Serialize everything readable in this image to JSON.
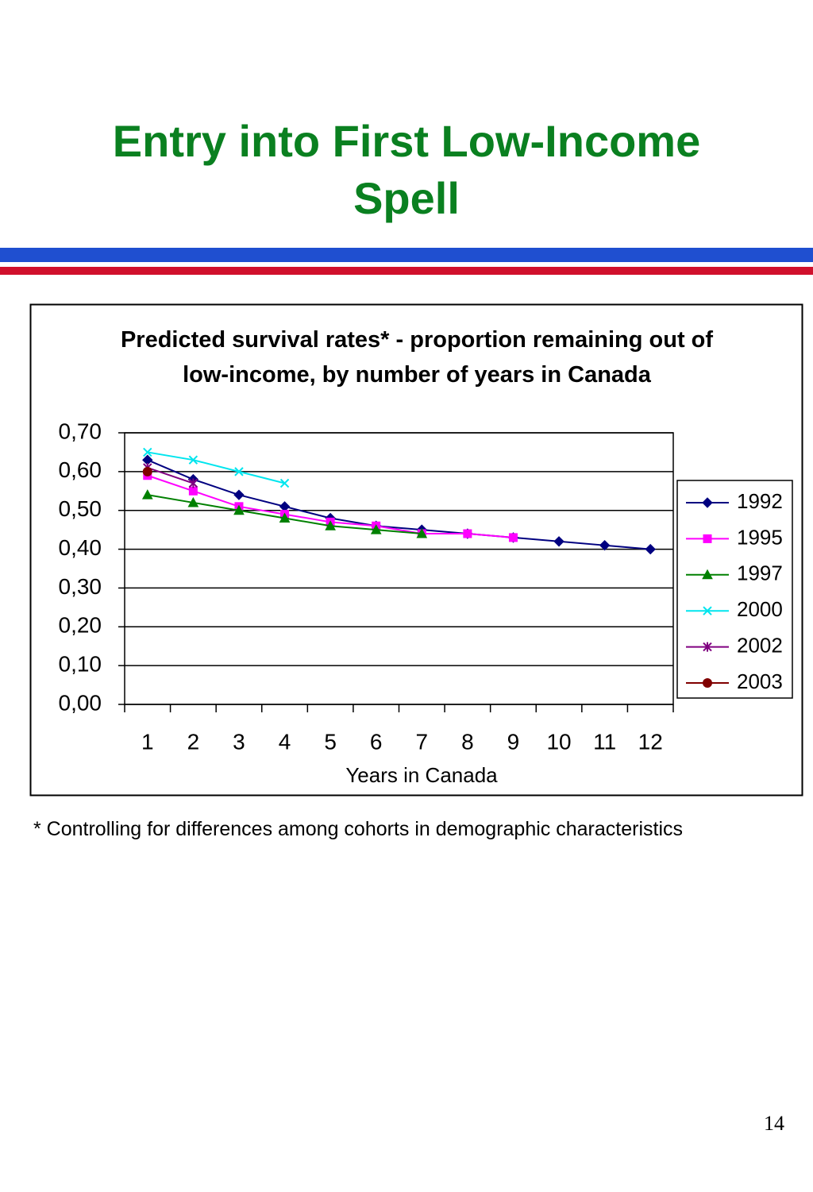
{
  "slide_title": "Entry into First Low-Income Spell",
  "footnote": "* Controlling for differences among cohorts in demographic characteristics",
  "page_number": "14",
  "chart_data": {
    "type": "line",
    "title": "Predicted survival rates* - proportion remaining out of low-income, by number of years in Canada",
    "x_label": "Years in Canada",
    "categories": [
      1,
      2,
      3,
      4,
      5,
      6,
      7,
      8,
      9,
      10,
      11,
      12
    ],
    "ylim": [
      0,
      0.7
    ],
    "yticks": [
      {
        "value": 0,
        "label": "0,00"
      },
      {
        "value": 0.1,
        "label": "0,10"
      },
      {
        "value": 0.2,
        "label": "0,20"
      },
      {
        "value": 0.3,
        "label": "0,30"
      },
      {
        "value": 0.4,
        "label": "0,40"
      },
      {
        "value": 0.5,
        "label": "0,50"
      },
      {
        "value": 0.6,
        "label": "0,60"
      },
      {
        "value": 0.7,
        "label": "0,70"
      }
    ],
    "grid": true,
    "legend": "right",
    "series": [
      {
        "name": "1992",
        "color": "#000080",
        "marker": "diamond",
        "values": [
          0.63,
          0.58,
          0.54,
          0.51,
          0.48,
          0.46,
          0.45,
          0.44,
          0.43,
          0.42,
          0.41,
          0.4
        ]
      },
      {
        "name": "1995",
        "color": "#ff00ff",
        "marker": "square",
        "values": [
          0.59,
          0.55,
          0.51,
          0.49,
          0.47,
          0.46,
          0.44,
          0.44,
          0.43,
          null,
          null,
          null
        ]
      },
      {
        "name": "1997",
        "color": "#008000",
        "marker": "triangle",
        "values": [
          0.54,
          0.52,
          0.5,
          0.48,
          0.46,
          0.45,
          0.44,
          null,
          null,
          null,
          null,
          null
        ]
      },
      {
        "name": "2000",
        "color": "#00e5ee",
        "marker": "x",
        "values": [
          0.65,
          0.63,
          0.6,
          0.57,
          null,
          null,
          null,
          null,
          null,
          null,
          null,
          null
        ]
      },
      {
        "name": "2002",
        "color": "#800080",
        "marker": "star",
        "values": [
          0.61,
          0.57,
          null,
          null,
          null,
          null,
          null,
          null,
          null,
          null,
          null,
          null
        ]
      },
      {
        "name": "2003",
        "color": "#800000",
        "marker": "circle",
        "values": [
          0.6,
          null,
          null,
          null,
          null,
          null,
          null,
          null,
          null,
          null,
          null,
          null
        ]
      }
    ]
  }
}
